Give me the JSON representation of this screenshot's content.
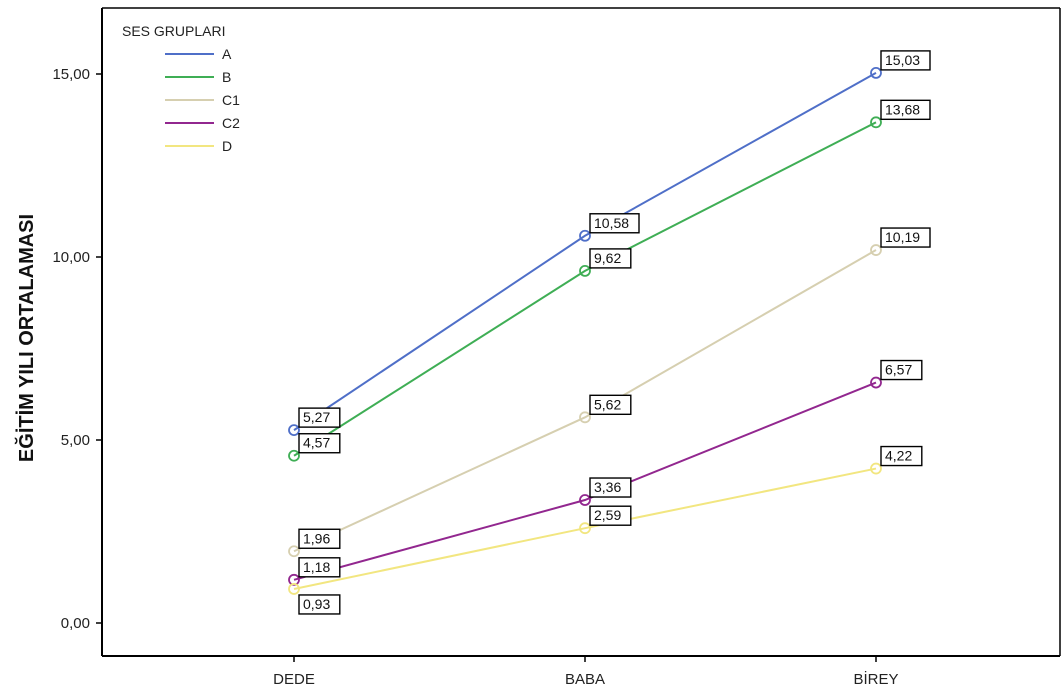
{
  "chart_data": {
    "type": "line",
    "title": "",
    "xlabel": "",
    "ylabel": "EĞİTİM YILI ORTALAMASI",
    "categories": [
      "DEDE",
      "BABA",
      "BİREY"
    ],
    "ylim": [
      0,
      16
    ],
    "yticks": [
      0,
      5,
      10,
      15
    ],
    "ytick_labels": [
      "0,00",
      "5,00",
      "10,00",
      "15,00"
    ],
    "grid": false,
    "legend": {
      "title": "SES GRUPLARI",
      "position": "top-left"
    },
    "series": [
      {
        "name": "A",
        "color": "#4f6fc8",
        "values": [
          5.27,
          10.58,
          15.03
        ],
        "labels": [
          "5,27",
          "10,58",
          "15,03"
        ]
      },
      {
        "name": "B",
        "color": "#3fae55",
        "values": [
          4.57,
          9.62,
          13.68
        ],
        "labels": [
          "4,57",
          "9,62",
          "13,68"
        ]
      },
      {
        "name": "C1",
        "color": "#d6cfb0",
        "values": [
          1.96,
          5.62,
          10.19
        ],
        "labels": [
          "1,96",
          "5,62",
          "10,19"
        ]
      },
      {
        "name": "C2",
        "color": "#92278f",
        "values": [
          1.18,
          3.36,
          6.57
        ],
        "labels": [
          "1,18",
          "3,36",
          "6,57"
        ]
      },
      {
        "name": "D",
        "color": "#f2e680",
        "values": [
          0.93,
          2.59,
          4.22
        ],
        "labels": [
          "0,93",
          "2,59",
          "4,22"
        ]
      }
    ]
  }
}
